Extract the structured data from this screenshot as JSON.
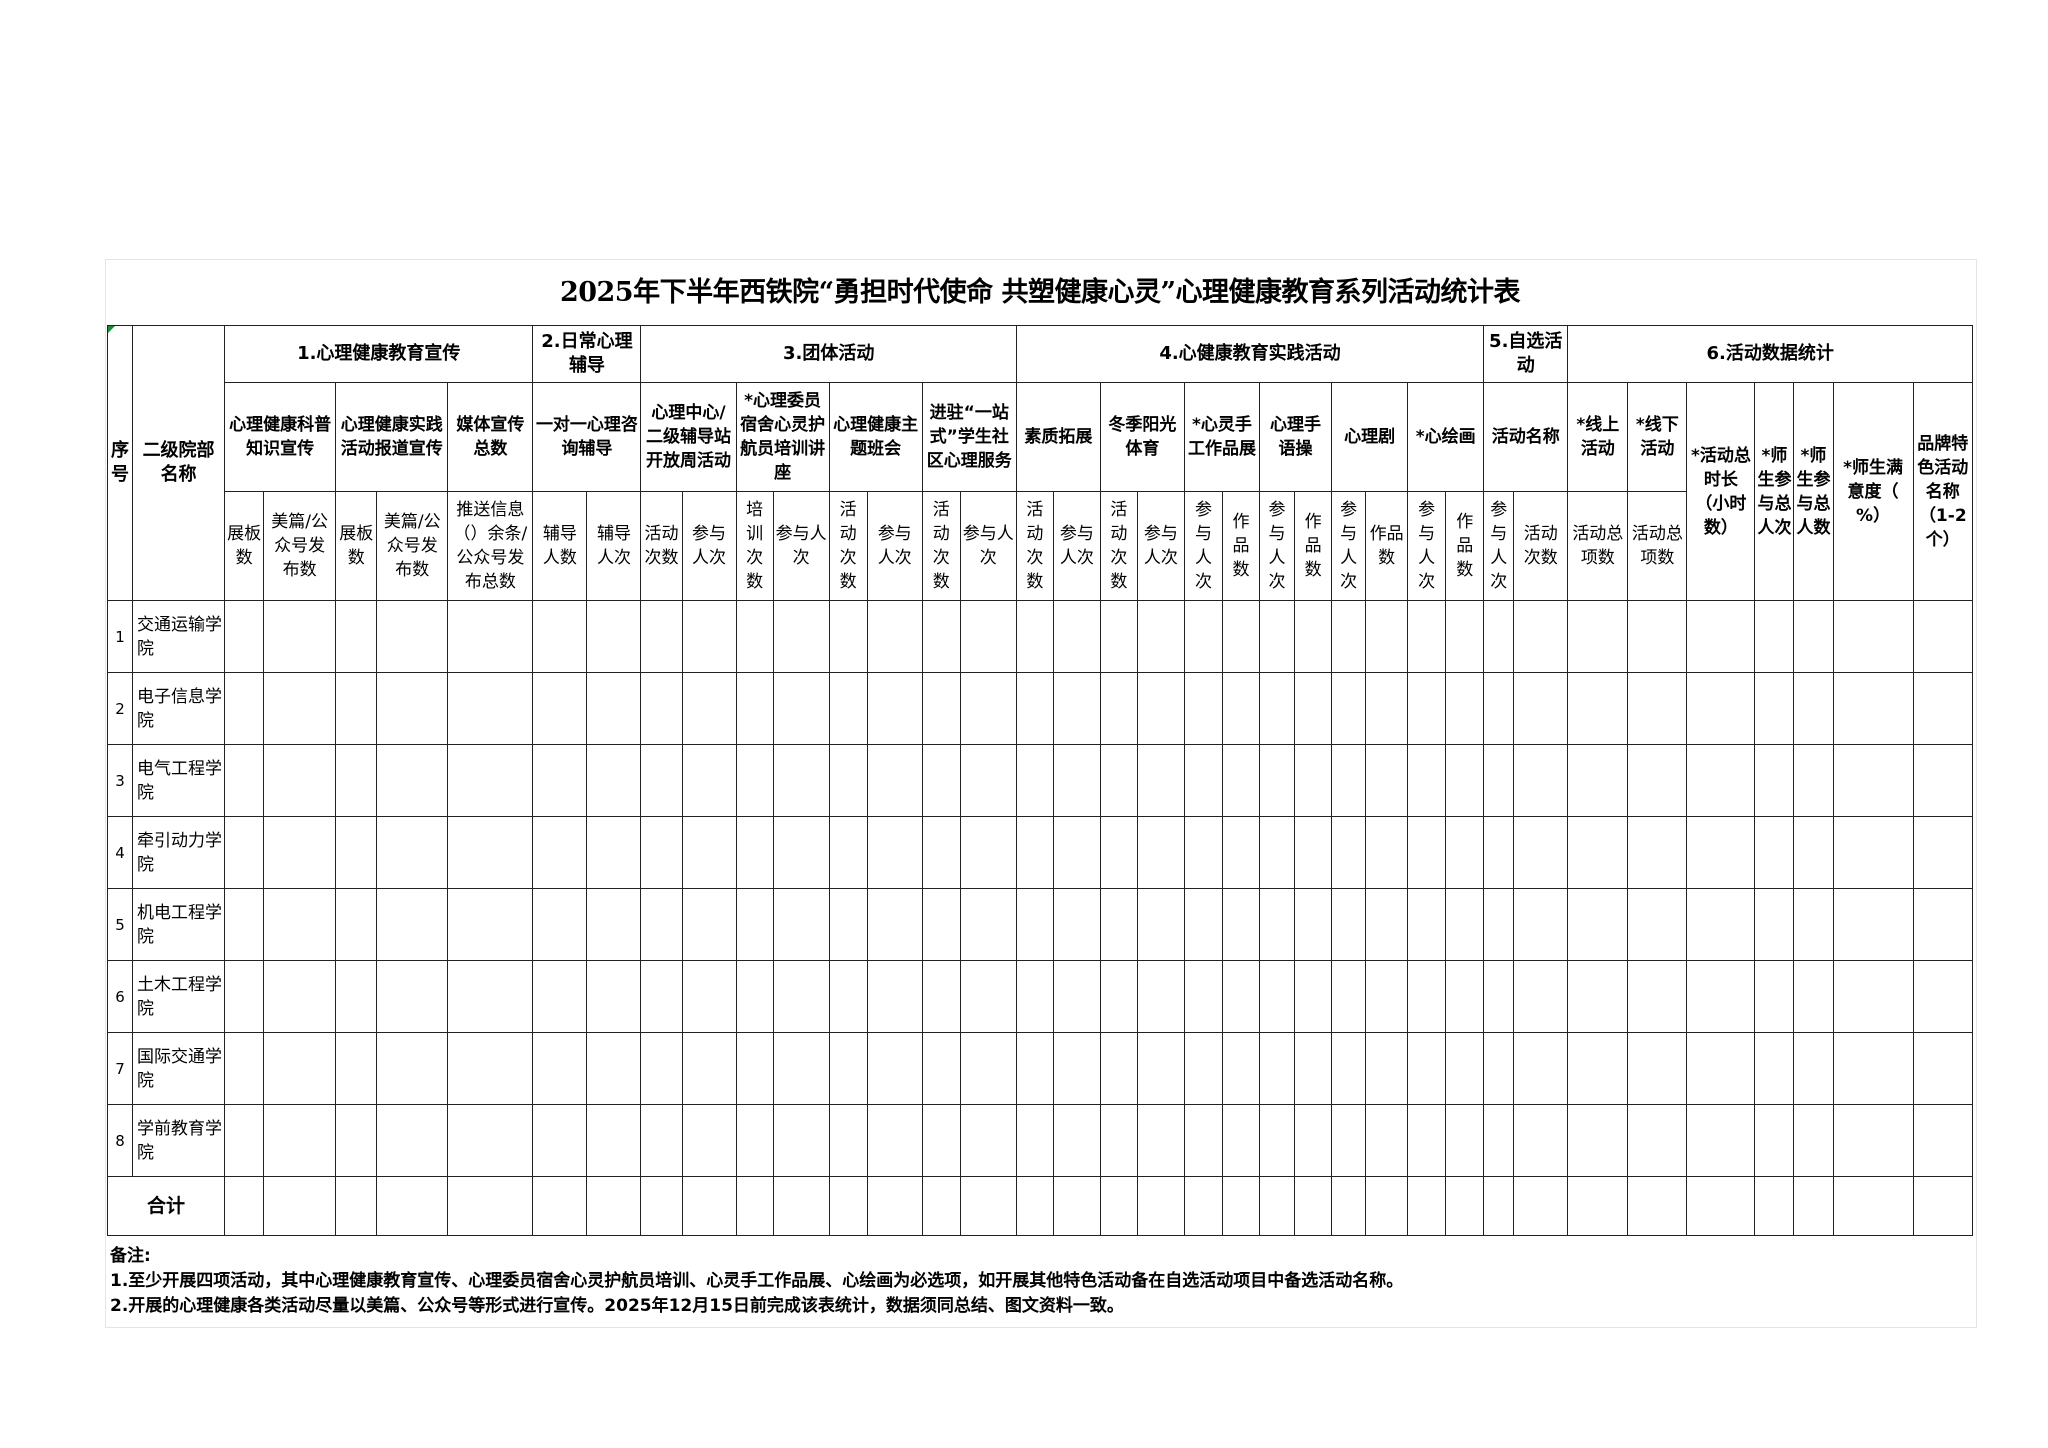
{
  "title": "2025年下半年西铁院“勇担时代使命 共塑健康心灵”心理健康教育系列活动统计表",
  "header": {
    "index": "序号",
    "dept": "二级院部名称",
    "groups": [
      {
        "label": "1.心理健康教育宣传",
        "span": 5
      },
      {
        "label": "2.日常心理辅导",
        "span": 2
      },
      {
        "label": "3.团体活动",
        "span": 8
      },
      {
        "label": "4.心健康教育实践活动",
        "span": 12
      },
      {
        "label": "5.自选活动",
        "span": 2
      },
      {
        "label": "6.活动数据统计",
        "span": 7
      }
    ],
    "items": [
      {
        "label": "心理健康科普知识宣传",
        "span": 2
      },
      {
        "label": "心理健康实践活动报道宣传",
        "span": 2
      },
      {
        "label": "媒体宣传总数",
        "span": 1
      },
      {
        "label": "一对一心理咨询辅导",
        "span": 2
      },
      {
        "label": "心理中心/二级辅导站开放周活动",
        "span": 2
      },
      {
        "label": "*心理委员宿舍心灵护航员培训讲座",
        "span": 2
      },
      {
        "label": "心理健康主题班会",
        "span": 2
      },
      {
        "label": "进驻“一站式”学生社区心理服务",
        "span": 2
      },
      {
        "label": "素质拓展",
        "span": 2
      },
      {
        "label": "冬季阳光体育",
        "span": 2
      },
      {
        "label": "*心灵手工作品展",
        "span": 2
      },
      {
        "label": "心理手语操",
        "span": 2
      },
      {
        "label": "心理剧",
        "span": 2
      },
      {
        "label": "*心绘画",
        "span": 2
      },
      {
        "label": "活动名称",
        "span": 2
      },
      {
        "label": "*线上活动",
        "span": 1
      },
      {
        "label": "*线下活动",
        "span": 1
      },
      {
        "label": "*活动总时长（小时数）",
        "span": 1,
        "rowspan": 2
      },
      {
        "label": "*师生参与总人次",
        "span": 1,
        "rowspan": 2
      },
      {
        "label": "*师生参与总人数",
        "span": 1,
        "rowspan": 2
      },
      {
        "label": "*师生满意度（ %）",
        "span": 1,
        "rowspan": 2
      },
      {
        "label": "品牌特色活动名称（1-2个）",
        "span": 1,
        "rowspan": 2
      }
    ],
    "subcols": [
      "展板数",
      "美篇/公众号发布数",
      "展板数",
      "美篇/公众号发布数",
      "推送信息（）余条/公众号发布总数",
      "辅导人数",
      "辅导人次",
      "活动次数",
      "参与人次",
      "培训次数",
      "参与人次",
      "活动次数",
      "参与人次",
      "活动次数",
      "参与人次",
      "活动次数",
      "参与人次",
      "活动次数",
      "参与人次",
      "参与人次",
      "作品数",
      "参与人次",
      "作品数",
      "参与人次",
      "作品数",
      "参与人次",
      "作品数",
      "参与人次",
      "活动次数",
      "活动总项数",
      "活动总项数"
    ]
  },
  "rows": [
    {
      "index": "1",
      "name": "交通运输学院"
    },
    {
      "index": "2",
      "name": "电子信息学院"
    },
    {
      "index": "3",
      "name": "电气工程学院"
    },
    {
      "index": "4",
      "name": "牵引动力学院"
    },
    {
      "index": "5",
      "name": "机电工程学院"
    },
    {
      "index": "6",
      "name": "土木工程学院"
    },
    {
      "index": "7",
      "name": "国际交通学院"
    },
    {
      "index": "8",
      "name": "学前教育学院"
    }
  ],
  "total_label": "合计",
  "notes": {
    "heading": "备注:",
    "lines": [
      "1.至少开展四项活动，其中心理健康教育宣传、心理委员宿舍心灵护航员培训、心灵手工作品展、心绘画为必选项，如开展其他特色活动备在自选活动项目中备选活动名称。",
      "2.开展的心理健康各类活动尽量以美篇、公众号等形式进行宣传。2025年12月15日前完成该表统计，数据须同总结、图文资料一致。"
    ]
  },
  "colors": {
    "grid": "#222222",
    "corner_marker": "#1c8a3a"
  }
}
